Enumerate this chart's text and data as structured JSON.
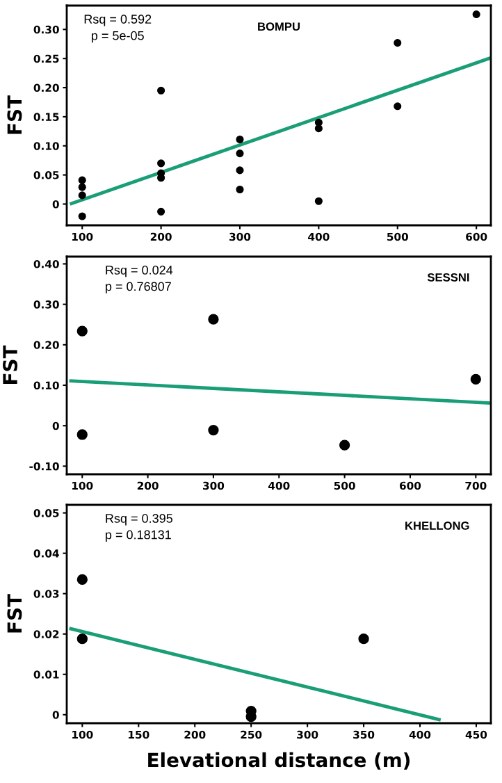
{
  "chart_data": [
    {
      "type": "scatter",
      "title": "BOMPU",
      "ylabel": "FST",
      "annotations": [
        "Rsq = 0.592",
        "p = 5e-05"
      ],
      "grid": false,
      "xlim": [
        80.4,
        618.4
      ],
      "xticks": [
        100,
        200,
        300,
        400,
        500,
        600
      ],
      "ylim": [
        -0.0365,
        0.341
      ],
      "yticks": [
        0,
        0.05,
        {
          "value": 0.1,
          "label": "0.10"
        },
        0.15,
        {
          "value": 0.2,
          "label": "0.20"
        },
        0.25,
        {
          "value": 0.3,
          "label": "0.30"
        }
      ],
      "series": [
        {
          "marker": "circle",
          "color": "#000000",
          "x": [
            100,
            100,
            100,
            100,
            200,
            200,
            200,
            200,
            200,
            300,
            300,
            300,
            300,
            400,
            400,
            400,
            500,
            500,
            600
          ],
          "values": [
            0.041,
            0.029,
            0.015,
            -0.021,
            0.195,
            0.07,
            0.053,
            0.045,
            -0.013,
            0.111,
            0.087,
            0.058,
            0.025,
            0.14,
            0.13,
            0.005,
            0.277,
            0.168,
            0.326
          ]
        },
        {
          "type": "line",
          "color": "#1a9e77",
          "x": [
            84.4,
            618
          ],
          "values": [
            0.0,
            0.251
          ]
        }
      ]
    },
    {
      "type": "scatter",
      "title": "SESSNI",
      "ylabel": "FST",
      "annotations": [
        "Rsq = 0.024",
        "p = 0.76807"
      ],
      "grid": false,
      "xlim": [
        76.4,
        723
      ],
      "xticks": [
        100,
        200,
        300,
        400,
        500,
        600,
        700
      ],
      "ylim": [
        -0.12,
        0.418
      ],
      "yticks": [
        {
          "value": -0.1,
          "label": "-0.10"
        },
        0,
        {
          "value": 0.1,
          "label": "0.10"
        },
        {
          "value": 0.2,
          "label": "0.20"
        },
        {
          "value": 0.3,
          "label": "0.30"
        },
        {
          "value": 0.4,
          "label": "0.40"
        }
      ],
      "series": [
        {
          "marker": "circle",
          "color": "#000000",
          "x": [
            100,
            100,
            300,
            300,
            500,
            700
          ],
          "values": [
            0.234,
            -0.022,
            0.263,
            -0.011,
            -0.048,
            0.115
          ]
        },
        {
          "type": "line",
          "color": "#1a9e77",
          "x": [
            80.3,
            722
          ],
          "values": [
            0.111,
            0.056
          ]
        }
      ]
    },
    {
      "type": "scatter",
      "title": "KHELLONG",
      "ylabel": "FST",
      "xlabel": "Elevational distance (m)",
      "annotations": [
        "Rsq = 0.395",
        "p = 0.18131"
      ],
      "grid": false,
      "xlim": [
        86.2,
        463
      ],
      "xticks": [
        100,
        150,
        200,
        250,
        300,
        350,
        400,
        450
      ],
      "ylim": [
        -0.0021,
        0.052
      ],
      "yticks": [
        0,
        0.01,
        0.02,
        0.03,
        0.04,
        0.05
      ],
      "series": [
        {
          "marker": "circle",
          "color": "#000000",
          "x": [
            100,
            100,
            250,
            250,
            350
          ],
          "values": [
            0.0335,
            0.0188,
            0.0009,
            -0.0005,
            0.0188
          ]
        },
        {
          "type": "line",
          "color": "#1a9e77",
          "x": [
            88.5,
            418.4
          ],
          "values": [
            0.0214,
            -0.0013
          ]
        }
      ]
    }
  ]
}
